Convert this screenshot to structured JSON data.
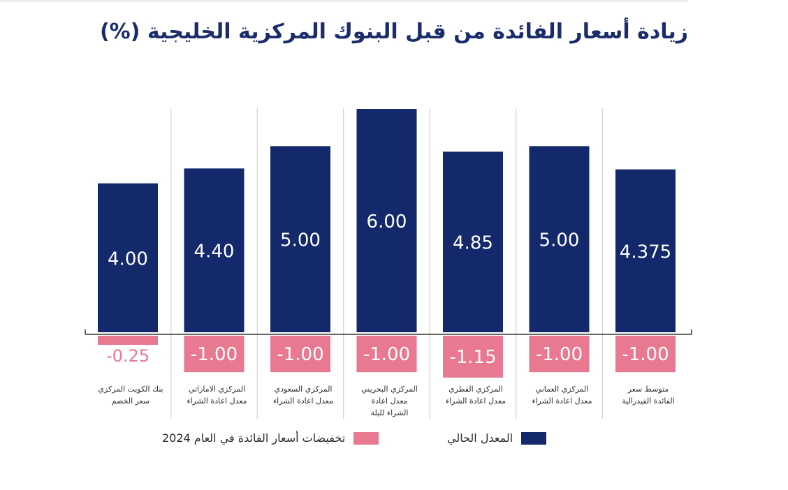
{
  "chart_data": {
    "type": "bar",
    "title": "زيادة أسعار الفائدة من قبل البنوك المركزية الخليجية (%)",
    "categories": [
      [
        "بنك الكويت المركزي",
        "سعر الخصم"
      ],
      [
        "المركزي الاماراتي",
        "معدل اعادة الشراء"
      ],
      [
        "المركزي السعودي",
        "معدل اعادة الشراء"
      ],
      [
        "المركزي البحريني",
        "معدل اعادة",
        "الشراء لليلة"
      ],
      [
        "المركزي القطري",
        "معدل اعادة الشراء"
      ],
      [
        "المركزي العماني",
        "معدل اعادة الشراء"
      ],
      [
        "متوسط سعر",
        "الفائدة الفيدرالية"
      ]
    ],
    "series": [
      {
        "name": "المعدل الحالي",
        "color": "#13296b",
        "values": [
          4.0,
          4.4,
          5.0,
          6.0,
          4.85,
          5.0,
          4.375
        ],
        "labels": [
          "4.00",
          "4.40",
          "5.00",
          "6.00",
          "4.85",
          "5.00",
          "4.375"
        ]
      },
      {
        "name": "تخفيضات أسعار الفائدة في العام 2024",
        "color": "#e87991",
        "values": [
          -0.25,
          -1.0,
          -1.0,
          -1.0,
          -1.15,
          -1.0,
          -1.0
        ],
        "labels": [
          "-0.25",
          "-1.00",
          "-1.00",
          "-1.00",
          "-1.15",
          "-1.00",
          "-1.00"
        ]
      }
    ],
    "ylim": [
      -1.15,
      6.0
    ],
    "grid": false,
    "legend_position": "bottom"
  }
}
